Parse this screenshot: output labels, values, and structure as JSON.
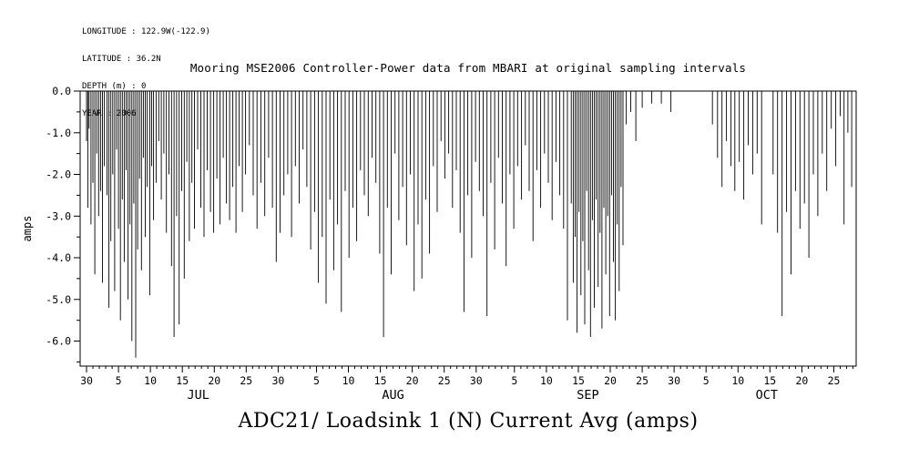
{
  "metadata": {
    "lines": [
      "LONGITUDE : 122.9W(-122.9)",
      "LATITUDE : 36.2N",
      "DEPTH (m) : 0",
      "YEAR : 2006"
    ]
  },
  "chart_data": {
    "type": "line",
    "title": "Mooring MSE2006 Controller-Power data from MBARI at original sampling intervals",
    "caption": "ADC21/ Loadsink 1 (N) Current Avg (amps)",
    "ylabel": "amps",
    "line_color": "#000000",
    "ylim": [
      -6.6,
      0
    ],
    "xlim_days": [
      0,
      121.5
    ],
    "y_ticks": [
      {
        "v": 0,
        "label": "0.0"
      },
      {
        "v": -1,
        "label": "-1.0"
      },
      {
        "v": -2,
        "label": "-2.0"
      },
      {
        "v": -3,
        "label": "-3.0"
      },
      {
        "v": -4,
        "label": "-4.0"
      },
      {
        "v": -5,
        "label": "-5.0"
      },
      {
        "v": -6,
        "label": "-6.0"
      }
    ],
    "x_ticks": [
      {
        "t": 1,
        "label": "30"
      },
      {
        "t": 6,
        "label": "5"
      },
      {
        "t": 11,
        "label": "10"
      },
      {
        "t": 16,
        "label": "15"
      },
      {
        "t": 21,
        "label": "20"
      },
      {
        "t": 26,
        "label": "25"
      },
      {
        "t": 31,
        "label": "30"
      },
      {
        "t": 37,
        "label": "5"
      },
      {
        "t": 42,
        "label": "10"
      },
      {
        "t": 47,
        "label": "15"
      },
      {
        "t": 52,
        "label": "20"
      },
      {
        "t": 57,
        "label": "25"
      },
      {
        "t": 62,
        "label": "30"
      },
      {
        "t": 68,
        "label": "5"
      },
      {
        "t": 73,
        "label": "10"
      },
      {
        "t": 78,
        "label": "15"
      },
      {
        "t": 83,
        "label": "20"
      },
      {
        "t": 88,
        "label": "25"
      },
      {
        "t": 93,
        "label": "30"
      },
      {
        "t": 98,
        "label": "5"
      },
      {
        "t": 103,
        "label": "10"
      },
      {
        "t": 108,
        "label": "15"
      },
      {
        "t": 113,
        "label": "20"
      },
      {
        "t": 118,
        "label": "25"
      }
    ],
    "month_labels": [
      {
        "t": 18.5,
        "label": "JUL"
      },
      {
        "t": 49,
        "label": "AUG"
      },
      {
        "t": 79.5,
        "label": "SEP"
      },
      {
        "t": 107.5,
        "label": "OCT"
      }
    ],
    "spikes": [
      [
        1.0,
        -1.2
      ],
      [
        1.2,
        -2.8
      ],
      [
        1.4,
        -0.9
      ],
      [
        1.7,
        -3.2
      ],
      [
        2.0,
        -2.2
      ],
      [
        2.3,
        -4.4
      ],
      [
        2.6,
        -1.5
      ],
      [
        2.9,
        -3.0
      ],
      [
        3.2,
        -2.4
      ],
      [
        3.5,
        -4.6
      ],
      [
        3.8,
        -1.8
      ],
      [
        4.2,
        -2.5
      ],
      [
        4.5,
        -5.2
      ],
      [
        4.8,
        -3.6
      ],
      [
        5.1,
        -2.0
      ],
      [
        5.4,
        -4.8
      ],
      [
        5.7,
        -1.4
      ],
      [
        6.0,
        -3.3
      ],
      [
        6.3,
        -5.5
      ],
      [
        6.6,
        -2.6
      ],
      [
        6.9,
        -4.1
      ],
      [
        7.2,
        -1.9
      ],
      [
        7.5,
        -5.0
      ],
      [
        7.8,
        -3.2
      ],
      [
        8.1,
        -6.0
      ],
      [
        8.4,
        -2.7
      ],
      [
        8.7,
        -6.4
      ],
      [
        9.0,
        -3.8
      ],
      [
        9.3,
        -2.1
      ],
      [
        9.6,
        -4.3
      ],
      [
        9.9,
        -1.6
      ],
      [
        10.2,
        -3.5
      ],
      [
        10.5,
        -2.3
      ],
      [
        10.9,
        -4.9
      ],
      [
        11.2,
        -1.8
      ],
      [
        11.5,
        -3.1
      ],
      [
        11.9,
        -2.2
      ],
      [
        12.3,
        -1.2
      ],
      [
        12.7,
        -2.6
      ],
      [
        13.1,
        -1.5
      ],
      [
        13.5,
        -3.4
      ],
      [
        13.9,
        -2.0
      ],
      [
        14.3,
        -4.2
      ],
      [
        14.7,
        -5.9
      ],
      [
        15.1,
        -3.0
      ],
      [
        15.5,
        -5.6
      ],
      [
        15.9,
        -2.4
      ],
      [
        16.3,
        -4.5
      ],
      [
        16.7,
        -1.7
      ],
      [
        17.1,
        -3.6
      ],
      [
        17.5,
        -2.2
      ],
      [
        17.9,
        -3.3
      ],
      [
        18.4,
        -1.4
      ],
      [
        18.9,
        -2.8
      ],
      [
        19.4,
        -3.5
      ],
      [
        19.9,
        -1.9
      ],
      [
        20.4,
        -2.9
      ],
      [
        20.9,
        -3.4
      ],
      [
        21.4,
        -2.1
      ],
      [
        21.9,
        -3.2
      ],
      [
        22.4,
        -1.6
      ],
      [
        22.9,
        -2.7
      ],
      [
        23.4,
        -3.1
      ],
      [
        23.9,
        -2.3
      ],
      [
        24.4,
        -3.4
      ],
      [
        24.9,
        -1.8
      ],
      [
        25.4,
        -2.9
      ],
      [
        25.9,
        -2.0
      ],
      [
        26.5,
        -1.3
      ],
      [
        27.1,
        -2.5
      ],
      [
        27.7,
        -3.3
      ],
      [
        28.3,
        -2.2
      ],
      [
        28.9,
        -3.0
      ],
      [
        29.5,
        -1.6
      ],
      [
        30.1,
        -2.8
      ],
      [
        30.7,
        -4.1
      ],
      [
        31.3,
        -3.4
      ],
      [
        31.9,
        -2.5
      ],
      [
        32.5,
        -2.0
      ],
      [
        33.1,
        -3.5
      ],
      [
        33.7,
        -1.8
      ],
      [
        34.3,
        -2.7
      ],
      [
        34.9,
        -1.4
      ],
      [
        35.5,
        -2.3
      ],
      [
        36.1,
        -3.8
      ],
      [
        36.7,
        -2.9
      ],
      [
        37.3,
        -4.6
      ],
      [
        37.9,
        -3.5
      ],
      [
        38.5,
        -5.1
      ],
      [
        39.1,
        -2.6
      ],
      [
        39.7,
        -4.3
      ],
      [
        40.3,
        -3.2
      ],
      [
        40.9,
        -5.3
      ],
      [
        41.5,
        -2.4
      ],
      [
        42.1,
        -4.0
      ],
      [
        42.7,
        -2.8
      ],
      [
        43.3,
        -3.6
      ],
      [
        43.9,
        -1.9
      ],
      [
        44.5,
        -2.5
      ],
      [
        45.1,
        -3.0
      ],
      [
        45.7,
        -1.6
      ],
      [
        46.3,
        -2.2
      ],
      [
        46.9,
        -3.9
      ],
      [
        47.5,
        -5.9
      ],
      [
        48.1,
        -2.8
      ],
      [
        48.7,
        -4.4
      ],
      [
        49.3,
        -1.5
      ],
      [
        49.9,
        -3.1
      ],
      [
        50.5,
        -2.3
      ],
      [
        51.1,
        -3.7
      ],
      [
        51.7,
        -2.0
      ],
      [
        52.3,
        -4.8
      ],
      [
        52.9,
        -3.2
      ],
      [
        53.5,
        -4.5
      ],
      [
        54.1,
        -2.6
      ],
      [
        54.7,
        -3.9
      ],
      [
        55.3,
        -1.8
      ],
      [
        55.9,
        -2.9
      ],
      [
        56.5,
        -1.2
      ],
      [
        57.1,
        -2.1
      ],
      [
        57.7,
        -1.5
      ],
      [
        58.3,
        -2.8
      ],
      [
        58.9,
        -1.9
      ],
      [
        59.5,
        -3.4
      ],
      [
        60.1,
        -5.3
      ],
      [
        60.7,
        -2.5
      ],
      [
        61.3,
        -4.0
      ],
      [
        61.9,
        -1.7
      ],
      [
        62.5,
        -2.4
      ],
      [
        63.1,
        -3.0
      ],
      [
        63.7,
        -5.4
      ],
      [
        64.3,
        -2.2
      ],
      [
        64.9,
        -3.8
      ],
      [
        65.5,
        -1.6
      ],
      [
        66.1,
        -2.7
      ],
      [
        66.7,
        -4.2
      ],
      [
        67.3,
        -2.0
      ],
      [
        67.9,
        -3.3
      ],
      [
        68.5,
        -1.8
      ],
      [
        69.1,
        -2.6
      ],
      [
        69.7,
        -1.3
      ],
      [
        70.3,
        -2.4
      ],
      [
        70.9,
        -3.6
      ],
      [
        71.5,
        -1.9
      ],
      [
        72.1,
        -2.8
      ],
      [
        72.7,
        -1.5
      ],
      [
        73.3,
        -2.2
      ],
      [
        73.9,
        -3.1
      ],
      [
        74.5,
        -1.7
      ],
      [
        75.1,
        -2.5
      ],
      [
        75.7,
        -3.3
      ],
      [
        76.3,
        -5.5
      ],
      [
        76.9,
        -2.7
      ],
      [
        77.2,
        -4.6
      ],
      [
        77.5,
        -3.5
      ],
      [
        77.8,
        -5.8
      ],
      [
        78.1,
        -2.9
      ],
      [
        78.4,
        -4.9
      ],
      [
        78.7,
        -3.6
      ],
      [
        79.0,
        -5.6
      ],
      [
        79.3,
        -2.4
      ],
      [
        79.6,
        -4.3
      ],
      [
        79.9,
        -5.9
      ],
      [
        80.2,
        -3.1
      ],
      [
        80.5,
        -5.2
      ],
      [
        80.8,
        -2.6
      ],
      [
        81.1,
        -4.7
      ],
      [
        81.4,
        -3.4
      ],
      [
        81.7,
        -5.7
      ],
      [
        82.0,
        -2.8
      ],
      [
        82.3,
        -4.4
      ],
      [
        82.6,
        -3.0
      ],
      [
        82.9,
        -5.4
      ],
      [
        83.2,
        -2.5
      ],
      [
        83.5,
        -4.1
      ],
      [
        83.8,
        -5.5
      ],
      [
        84.1,
        -3.2
      ],
      [
        84.4,
        -4.8
      ],
      [
        84.7,
        -2.3
      ],
      [
        85.0,
        -3.7
      ],
      [
        85.5,
        -0.8
      ],
      [
        86.2,
        -0.5
      ],
      [
        87.0,
        -1.2
      ],
      [
        88.0,
        -0.4
      ],
      [
        89.5,
        -0.3
      ],
      [
        91.0,
        -0.3
      ],
      [
        92.5,
        -0.5
      ],
      [
        99.0,
        -0.8
      ],
      [
        99.8,
        -1.6
      ],
      [
        100.5,
        -2.3
      ],
      [
        101.2,
        -1.2
      ],
      [
        101.9,
        -1.8
      ],
      [
        102.5,
        -2.4
      ],
      [
        103.2,
        -1.7
      ],
      [
        103.9,
        -2.6
      ],
      [
        104.6,
        -1.3
      ],
      [
        105.3,
        -2.0
      ],
      [
        106.0,
        -1.5
      ],
      [
        106.7,
        -3.2
      ],
      [
        108.5,
        -2.0
      ],
      [
        109.2,
        -3.4
      ],
      [
        109.9,
        -5.4
      ],
      [
        110.6,
        -2.9
      ],
      [
        111.3,
        -4.4
      ],
      [
        112.0,
        -2.4
      ],
      [
        112.7,
        -3.3
      ],
      [
        113.4,
        -2.7
      ],
      [
        114.1,
        -4.0
      ],
      [
        114.8,
        -2.0
      ],
      [
        115.5,
        -3.0
      ],
      [
        116.2,
        -1.5
      ],
      [
        116.9,
        -2.4
      ],
      [
        117.6,
        -0.9
      ],
      [
        118.3,
        -1.8
      ],
      [
        119.0,
        -0.6
      ],
      [
        119.6,
        -3.2
      ],
      [
        120.2,
        -1.0
      ],
      [
        120.8,
        -2.3
      ]
    ]
  }
}
